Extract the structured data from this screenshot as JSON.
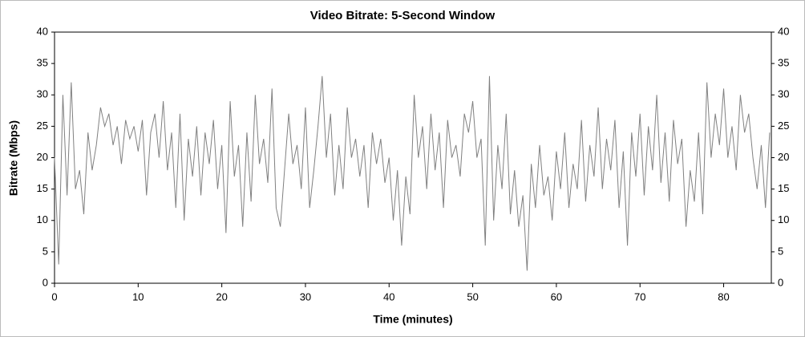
{
  "chart_data": {
    "type": "line",
    "title": "Video Bitrate: 5-Second Window",
    "x_label": "Time (minutes)",
    "y_label": "Bitrate (Mbps)",
    "xlim": [
      0,
      85.7
    ],
    "xticks": [
      0,
      10,
      20,
      30,
      40,
      50,
      60,
      70,
      80
    ],
    "ylim": [
      0,
      40
    ],
    "yticks": [
      0,
      5,
      10,
      15,
      20,
      25,
      30,
      35,
      40
    ],
    "grid": false,
    "color": "#808080",
    "x": [
      0,
      0.5,
      1,
      1.5,
      2,
      2.5,
      3,
      3.5,
      4,
      4.5,
      5,
      5.5,
      6,
      6.5,
      7,
      7.5,
      8,
      8.5,
      9,
      9.5,
      10,
      10.5,
      11,
      11.5,
      12,
      12.5,
      13,
      13.5,
      14,
      14.5,
      15,
      15.5,
      16,
      16.5,
      17,
      17.5,
      18,
      18.5,
      19,
      19.5,
      20,
      20.5,
      21,
      21.5,
      22,
      22.5,
      23,
      23.5,
      24,
      24.5,
      25,
      25.5,
      26,
      26.5,
      27,
      27.5,
      28,
      28.5,
      29,
      29.5,
      30,
      30.5,
      31,
      31.5,
      32,
      32.5,
      33,
      33.5,
      34,
      34.5,
      35,
      35.5,
      36,
      36.5,
      37,
      37.5,
      38,
      38.5,
      39,
      39.5,
      40,
      40.5,
      41,
      41.5,
      42,
      42.5,
      43,
      43.5,
      44,
      44.5,
      45,
      45.5,
      46,
      46.5,
      47,
      47.5,
      48,
      48.5,
      49,
      49.5,
      50,
      50.5,
      51,
      51.5,
      52,
      52.5,
      53,
      53.5,
      54,
      54.5,
      55,
      55.5,
      56,
      56.5,
      57,
      57.5,
      58,
      58.5,
      59,
      59.5,
      60,
      60.5,
      61,
      61.5,
      62,
      62.5,
      63,
      63.5,
      64,
      64.5,
      65,
      65.5,
      66,
      66.5,
      67,
      67.5,
      68,
      68.5,
      69,
      69.5,
      70,
      70.5,
      71,
      71.5,
      72,
      72.5,
      73,
      73.5,
      74,
      74.5,
      75,
      75.5,
      76,
      76.5,
      77,
      77.5,
      78,
      78.5,
      79,
      79.5,
      80,
      80.5,
      81,
      81.5,
      82,
      82.5,
      83,
      83.5,
      84,
      84.5,
      85,
      85.5
    ],
    "values": [
      20,
      3,
      30,
      14,
      32,
      15,
      18,
      11,
      24,
      18,
      22,
      28,
      25,
      27,
      22,
      25,
      19,
      26,
      23,
      25,
      21,
      26,
      14,
      24,
      27,
      20,
      29,
      18,
      24,
      12,
      27,
      10,
      23,
      17,
      25,
      14,
      24,
      19,
      26,
      15,
      22,
      8,
      29,
      17,
      22,
      9,
      24,
      13,
      30,
      19,
      23,
      16,
      31,
      12,
      9,
      18,
      27,
      19,
      22,
      15,
      28,
      12,
      18,
      25,
      33,
      20,
      27,
      14,
      22,
      15,
      28,
      20,
      23,
      17,
      22,
      12,
      24,
      19,
      23,
      16,
      20,
      10,
      18,
      6,
      17,
      11,
      30,
      20,
      25,
      15,
      27,
      18,
      24,
      12,
      26,
      20,
      22,
      17,
      27,
      24,
      29,
      20,
      23,
      6,
      33,
      10,
      22,
      15,
      27,
      11,
      18,
      9,
      14,
      2,
      19,
      12,
      22,
      14,
      17,
      10,
      21,
      15,
      24,
      12,
      19,
      15,
      26,
      13,
      22,
      17,
      28,
      15,
      23,
      18,
      26,
      12,
      21,
      6,
      24,
      17,
      27,
      14,
      25,
      18,
      30,
      16,
      24,
      13,
      26,
      19,
      23,
      9,
      18,
      13,
      24,
      11,
      32,
      20,
      27,
      22,
      31,
      20,
      25,
      18,
      30,
      24,
      27,
      20,
      15,
      22,
      12,
      24
    ]
  }
}
